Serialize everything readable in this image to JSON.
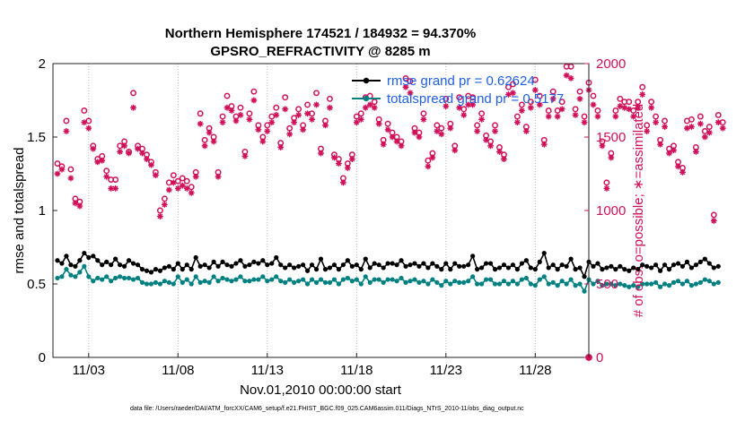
{
  "chart_data": {
    "type": "line",
    "title": "Northern Hemisphere 174521 / 184932 = 94.370%",
    "subtitle": "GPSRO_REFRACTIVITY @ 8285 m",
    "xlabel": "Nov.01,2010 00:00:00 start",
    "ylabel": "rmse and totalspread",
    "ylabel_right": "# of obs: o=possible; ∗=assimilated",
    "footnote": "data file: /Users/raeder/DAI/ATM_forcXX/CAM6_setup/f.e21.FHIST_BGC.f09_025.CAM6assim.011/Diags_NTrS_2010-11/obs_diag_output.nc",
    "xlim": [
      1,
      31
    ],
    "ylim": [
      0,
      2
    ],
    "ylim_right": [
      0,
      2000
    ],
    "x_ticks": [
      3,
      8,
      13,
      18,
      23,
      28
    ],
    "x_tick_labels": [
      "11/03",
      "11/08",
      "11/13",
      "11/18",
      "11/23",
      "11/28"
    ],
    "y_ticks": [
      0,
      0.5,
      1,
      1.5,
      2
    ],
    "y_tick_labels": [
      "0",
      "0.5",
      "1",
      "1.5",
      "2"
    ],
    "y_ticks_right": [
      0,
      500,
      1000,
      1500,
      2000
    ],
    "y_tick_labels_right": [
      "0",
      "500",
      "1000",
      "1500",
      "2000"
    ],
    "x_start": 1.25,
    "x_step": 0.25,
    "legend_position": "top-right",
    "colors": {
      "rmse": "#000000",
      "spread": "#008080",
      "obs": "#d0105a"
    },
    "series": [
      {
        "name": "rmse",
        "legend": "rmse grand pr = 0.62624",
        "values": [
          0.66,
          0.64,
          0.69,
          0.63,
          0.62,
          0.66,
          0.71,
          0.68,
          0.69,
          0.66,
          0.63,
          0.65,
          0.63,
          0.67,
          0.63,
          0.62,
          0.66,
          0.64,
          0.63,
          0.6,
          0.59,
          0.58,
          0.6,
          0.59,
          0.61,
          0.62,
          0.6,
          0.64,
          0.6,
          0.63,
          0.6,
          0.68,
          0.62,
          0.63,
          0.61,
          0.65,
          0.62,
          0.65,
          0.63,
          0.62,
          0.64,
          0.66,
          0.62,
          0.63,
          0.65,
          0.64,
          0.66,
          0.63,
          0.64,
          0.68,
          0.63,
          0.61,
          0.63,
          0.61,
          0.62,
          0.63,
          0.59,
          0.63,
          0.6,
          0.67,
          0.6,
          0.61,
          0.63,
          0.6,
          0.63,
          0.66,
          0.62,
          0.63,
          0.6,
          0.67,
          0.61,
          0.64,
          0.63,
          0.61,
          0.64,
          0.64,
          0.63,
          0.66,
          0.62,
          0.63,
          0.64,
          0.62,
          0.64,
          0.61,
          0.64,
          0.62,
          0.6,
          0.64,
          0.6,
          0.64,
          0.62,
          0.62,
          0.63,
          0.69,
          0.6,
          0.61,
          0.64,
          0.64,
          0.6,
          0.61,
          0.63,
          0.61,
          0.63,
          0.6,
          0.64,
          0.66,
          0.61,
          0.6,
          0.65,
          0.71,
          0.61,
          0.63,
          0.6,
          0.63,
          0.62,
          0.67,
          0.6,
          0.61,
          0.55,
          0.65,
          0.62,
          0.64,
          0.6,
          0.61,
          0.62,
          0.6,
          0.62,
          0.6,
          0.59,
          0.61,
          0.6,
          0.63,
          0.62,
          0.61,
          0.63,
          0.59,
          0.63,
          0.6,
          0.63,
          0.64,
          0.62,
          0.65,
          0.61,
          0.63,
          0.65,
          0.67,
          0.64,
          0.61,
          0.62
        ]
      },
      {
        "name": "totalspread",
        "legend": "totalspread grand pr = 0.5177",
        "values": [
          0.54,
          0.55,
          0.6,
          0.56,
          0.55,
          0.58,
          0.62,
          0.55,
          0.52,
          0.54,
          0.53,
          0.55,
          0.52,
          0.54,
          0.55,
          0.54,
          0.54,
          0.53,
          0.54,
          0.51,
          0.5,
          0.5,
          0.51,
          0.5,
          0.52,
          0.51,
          0.5,
          0.55,
          0.51,
          0.53,
          0.5,
          0.55,
          0.51,
          0.52,
          0.51,
          0.55,
          0.52,
          0.54,
          0.53,
          0.52,
          0.53,
          0.55,
          0.52,
          0.52,
          0.53,
          0.53,
          0.55,
          0.52,
          0.53,
          0.55,
          0.52,
          0.51,
          0.53,
          0.51,
          0.52,
          0.53,
          0.5,
          0.53,
          0.51,
          0.53,
          0.51,
          0.51,
          0.53,
          0.5,
          0.53,
          0.54,
          0.52,
          0.53,
          0.5,
          0.55,
          0.51,
          0.53,
          0.53,
          0.51,
          0.53,
          0.53,
          0.52,
          0.54,
          0.51,
          0.52,
          0.53,
          0.51,
          0.52,
          0.5,
          0.53,
          0.51,
          0.49,
          0.52,
          0.5,
          0.52,
          0.51,
          0.51,
          0.52,
          0.55,
          0.5,
          0.5,
          0.53,
          0.53,
          0.5,
          0.5,
          0.52,
          0.5,
          0.52,
          0.5,
          0.53,
          0.54,
          0.5,
          0.49,
          0.53,
          0.55,
          0.5,
          0.51,
          0.49,
          0.52,
          0.5,
          0.53,
          0.49,
          0.5,
          0.45,
          0.53,
          0.5,
          0.52,
          0.49,
          0.5,
          0.5,
          0.49,
          0.5,
          0.49,
          0.48,
          0.49,
          0.48,
          0.5,
          0.5,
          0.5,
          0.51,
          0.48,
          0.5,
          0.49,
          0.51,
          0.52,
          0.5,
          0.52,
          0.49,
          0.5,
          0.51,
          0.53,
          0.52,
          0.5,
          0.51
        ]
      }
    ],
    "obs_possible": [
      1320,
      1300,
      1610,
      1280,
      1080,
      1060,
      1680,
      1610,
      1440,
      1350,
      1370,
      1270,
      1210,
      1210,
      1440,
      1470,
      1400,
      1800,
      1440,
      1420,
      1380,
      1330,
      1260,
      1000,
      1080,
      1190,
      1240,
      1200,
      1220,
      1200,
      1160,
      1260,
      1660,
      1480,
      1560,
      1500,
      1260,
      1640,
      1780,
      1710,
      1640,
      1700,
      1400,
      1660,
      1810,
      1580,
      1500,
      1580,
      1640,
      1700,
      1460,
      1770,
      1560,
      1630,
      1690,
      1580,
      1720,
      1660,
      1800,
      1420,
      1610,
      1760,
      1380,
      1350,
      1220,
      1320,
      1380,
      1640,
      1660,
      1770,
      1780,
      1740,
      1620,
      1480,
      1590,
      1530,
      1500,
      1470,
      1900,
      1880,
      1560,
      1530,
      1660,
      1340,
      1390,
      1580,
      1560,
      1760,
      1590,
      1440,
      1770,
      1690,
      1780,
      1770,
      1580,
      1660,
      1510,
      1470,
      1580,
      1430,
      1380,
      1840,
      1860,
      1640,
      1720,
      1570,
      1740,
      1890,
      1780,
      1480,
      1680,
      1810,
      1680,
      1740,
      1980,
      1980,
      1690,
      1810,
      1640,
      1870,
      1780,
      1680,
      1470,
      1190,
      1390,
      1680,
      1760,
      1740,
      1740,
      1680,
      1740,
      1840,
      1580,
      1740,
      1640,
      1480,
      1610,
      1420,
      1440,
      1330,
      1290,
      1610,
      1620,
      1430,
      1640,
      1540,
      1570,
      970,
      1650,
      1600
    ],
    "obs_assimilated": [
      1250,
      1280,
      1540,
      1220,
      1050,
      1030,
      1600,
      1560,
      1420,
      1330,
      1340,
      1230,
      1150,
      1150,
      1400,
      1440,
      1390,
      1700,
      1420,
      1390,
      1350,
      1310,
      1240,
      960,
      1040,
      1140,
      1190,
      1150,
      1170,
      1150,
      1120,
      1230,
      1590,
      1440,
      1530,
      1470,
      1230,
      1600,
      1700,
      1680,
      1610,
      1650,
      1370,
      1620,
      1750,
      1550,
      1470,
      1540,
      1600,
      1650,
      1430,
      1690,
      1520,
      1600,
      1650,
      1550,
      1660,
      1620,
      1720,
      1390,
      1580,
      1700,
      1360,
      1320,
      1190,
      1290,
      1350,
      1600,
      1620,
      1700,
      1720,
      1700,
      1590,
      1450,
      1550,
      1500,
      1470,
      1440,
      1840,
      1800,
      1530,
      1500,
      1620,
      1300,
      1360,
      1540,
      1520,
      1710,
      1560,
      1410,
      1700,
      1650,
      1720,
      1720,
      1540,
      1620,
      1480,
      1440,
      1540,
      1400,
      1350,
      1790,
      1800,
      1600,
      1680,
      1540,
      1700,
      1820,
      1720,
      1450,
      1640,
      1760,
      1640,
      1690,
      1920,
      1900,
      1650,
      1760,
      1600,
      1820,
      1720,
      1640,
      1440,
      1150,
      1360,
      1640,
      1710,
      1700,
      1690,
      1640,
      1700,
      1790,
      1540,
      1700,
      1600,
      1450,
      1570,
      1390,
      1410,
      1300,
      1260,
      1560,
      1570,
      1400,
      1590,
      1500,
      1530,
      930,
      1600,
      1560
    ]
  }
}
